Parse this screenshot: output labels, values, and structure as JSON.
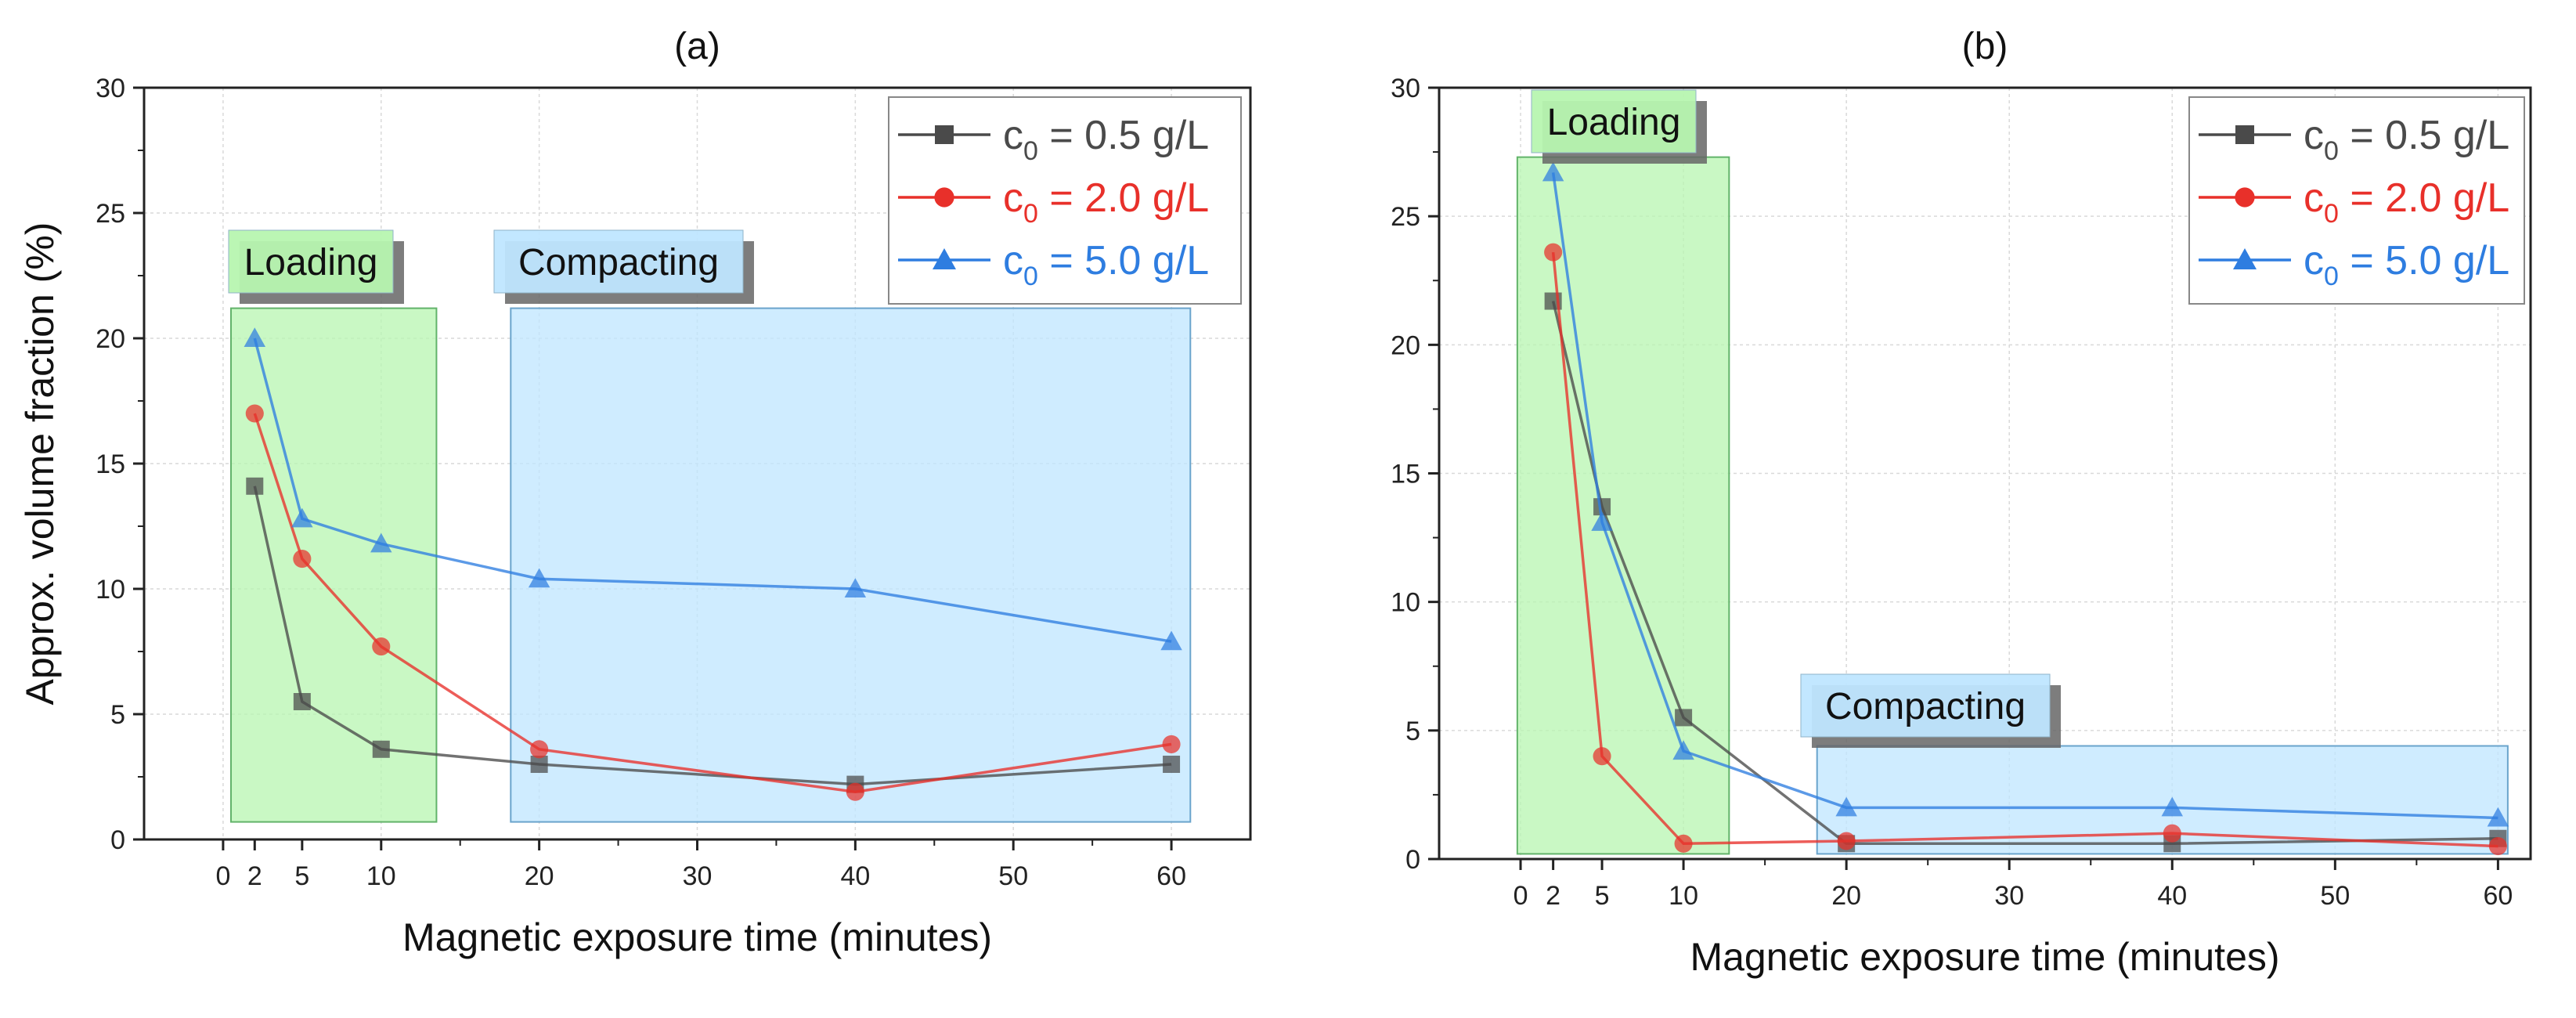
{
  "chart_data": [
    {
      "type": "line",
      "title": "(a)",
      "xlabel": "Magnetic exposure time (minutes)",
      "ylabel": "Approx. volume fraction (%)",
      "xlim": [
        -5,
        65
      ],
      "ylim": [
        0,
        30
      ],
      "xticks": [
        0,
        2,
        5,
        10,
        20,
        30,
        40,
        50,
        60
      ],
      "yticks": [
        0,
        5,
        10,
        15,
        20,
        25,
        30
      ],
      "grid": true,
      "legend_position": "top-right",
      "regions": [
        {
          "label": "Loading",
          "x_range": [
            0.5,
            13.5
          ],
          "y_range": [
            0.7,
            21.2
          ],
          "fill": "#b7f5b0",
          "stroke": "#62b36a"
        },
        {
          "label": "Compacting",
          "x_range": [
            18.2,
            61.2
          ],
          "y_range": [
            0.7,
            21.2
          ],
          "fill": "#bfe6ff",
          "stroke": "#6aa4cc"
        }
      ],
      "series": [
        {
          "name": "c0 = 0.5 g/L",
          "name_main": "c",
          "name_sub": "0",
          "name_rest": " = 0.5 g/L",
          "color": "#4a4a4a",
          "marker": "square",
          "x": [
            2,
            5,
            10,
            20,
            40,
            60
          ],
          "y": [
            14.1,
            5.5,
            3.6,
            3.0,
            2.2,
            3.0
          ]
        },
        {
          "name": "c0 = 2.0 g/L",
          "name_main": "c",
          "name_sub": "0",
          "name_rest": " = 2.0 g/L",
          "color": "#e8302a",
          "marker": "circle",
          "x": [
            2,
            5,
            10,
            20,
            40,
            60
          ],
          "y": [
            17.0,
            11.2,
            7.7,
            3.6,
            1.9,
            3.8
          ]
        },
        {
          "name": "c0 = 5.0 g/L",
          "name_main": "c",
          "name_sub": "0",
          "name_rest": " = 5.0 g/L",
          "color": "#2e7de0",
          "marker": "triangle",
          "x": [
            2,
            5,
            10,
            20,
            40,
            60
          ],
          "y": [
            20.0,
            12.8,
            11.8,
            10.4,
            10.0,
            7.9
          ]
        }
      ]
    },
    {
      "type": "line",
      "title": "(b)",
      "xlabel": "Magnetic exposure time (minutes)",
      "ylabel": "",
      "xlim": [
        -5,
        62
      ],
      "ylim": [
        0,
        30
      ],
      "xticks": [
        0,
        2,
        5,
        10,
        20,
        30,
        40,
        50,
        60
      ],
      "yticks": [
        0,
        5,
        10,
        15,
        20,
        25,
        30
      ],
      "grid": true,
      "legend_position": "top-right",
      "regions": [
        {
          "label": "Loading",
          "x_range": [
            -0.2,
            12.8
          ],
          "y_range": [
            0.2,
            27.3
          ],
          "fill": "#b7f5b0",
          "stroke": "#62b36a"
        },
        {
          "label": "Compacting",
          "x_range": [
            18.2,
            60.6
          ],
          "y_range": [
            0.2,
            4.4
          ],
          "fill": "#bfe6ff",
          "stroke": "#6aa4cc"
        }
      ],
      "series": [
        {
          "name": "c0 = 0.5 g/L",
          "name_main": "c",
          "name_sub": "0",
          "name_rest": " = 0.5 g/L",
          "color": "#4a4a4a",
          "marker": "square",
          "x": [
            2,
            5,
            10,
            20,
            40,
            60
          ],
          "y": [
            21.7,
            13.7,
            5.5,
            0.6,
            0.6,
            0.8
          ]
        },
        {
          "name": "c0 = 2.0 g/L",
          "name_main": "c",
          "name_sub": "0",
          "name_rest": " = 2.0 g/L",
          "color": "#e8302a",
          "marker": "circle",
          "x": [
            2,
            5,
            10,
            20,
            40,
            60
          ],
          "y": [
            23.6,
            4.0,
            0.6,
            0.7,
            1.0,
            0.5
          ]
        },
        {
          "name": "c0 = 5.0 g/L",
          "name_main": "c",
          "name_sub": "0",
          "name_rest": " = 5.0 g/L",
          "color": "#2e7de0",
          "marker": "triangle",
          "x": [
            2,
            5,
            10,
            20,
            40,
            60
          ],
          "y": [
            26.7,
            13.1,
            4.2,
            2.0,
            2.0,
            1.6
          ]
        }
      ]
    }
  ]
}
